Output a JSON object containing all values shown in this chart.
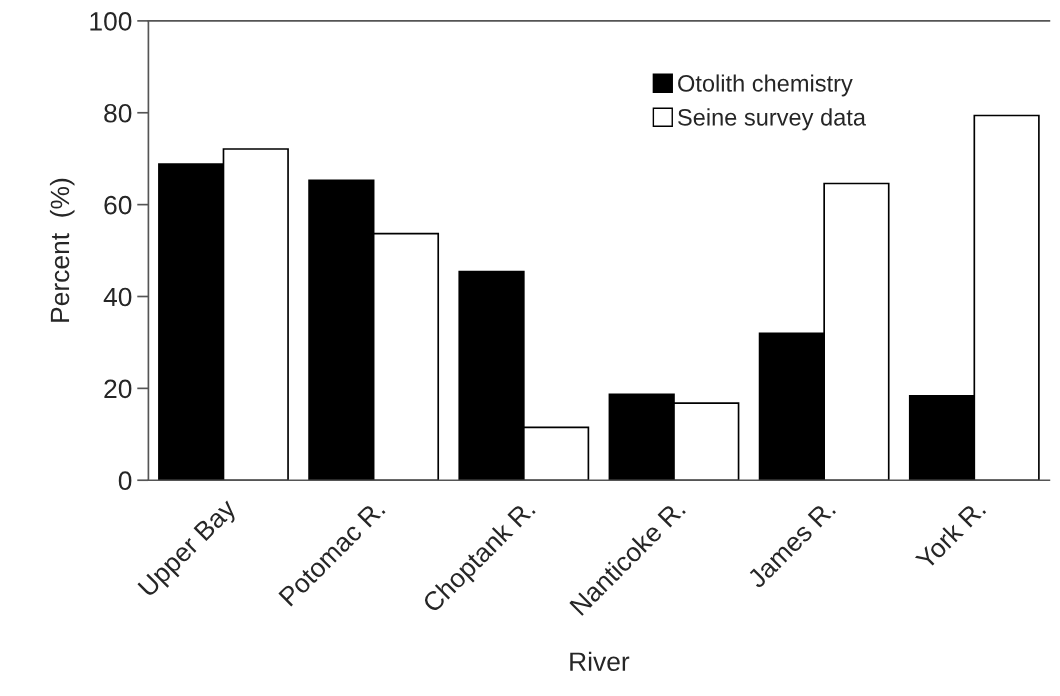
{
  "chart_data": {
    "type": "bar",
    "xlabel": "River",
    "ylabel": "Percent  (%)",
    "categories": [
      "Upper Bay",
      "Potomac R.",
      "Choptank R.",
      "Nanticoke R.",
      "James R.",
      "York R."
    ],
    "series": [
      {
        "name": "Otolith chemistry",
        "color": "#000000",
        "values": [
          68.8,
          65.3,
          45.4,
          18.7,
          32.0,
          18.4
        ]
      },
      {
        "name": "Seine survey data",
        "color": "#ffffff",
        "values": [
          72.1,
          53.7,
          11.5,
          16.8,
          64.6,
          79.4
        ]
      }
    ],
    "ylim": [
      0,
      100
    ],
    "yticks": [
      0,
      20,
      40,
      60,
      80,
      100
    ],
    "grid": false,
    "legend": "top right"
  }
}
